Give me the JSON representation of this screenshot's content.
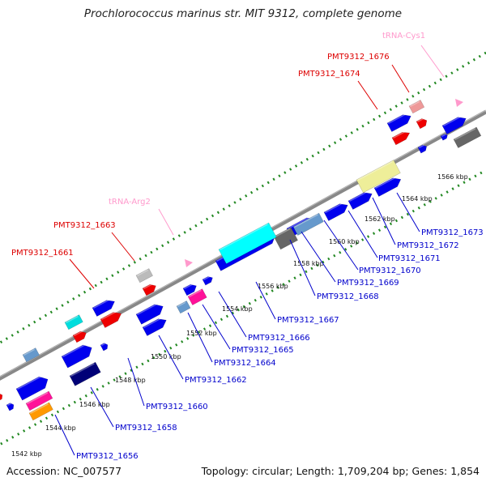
{
  "title": "Prochlorococcus marinus str. MIT 9312, complete genome",
  "accession": "Accession: NC_007577",
  "summary": "Topology: circular; Length: 1,709,204 bp; Genes: 1,854",
  "colors": {
    "label_red": "#dd0000",
    "label_blue": "#0000cc",
    "label_pink": "#ff99cc",
    "backbone": "#888888",
    "dotted_track": "#228822"
  },
  "scale_labels": [
    "1542 kbp",
    "1544 kbp",
    "1546 kbp",
    "1548 kbp",
    "1550 kbp",
    "1552 kbp",
    "1554 kbp",
    "1556 kbp",
    "1558 kbp",
    "1560 kbp",
    "1562 kbp",
    "1564 kbp",
    "1566 kbp"
  ],
  "gene_labels": [
    {
      "text": "tRNA-Cys1",
      "color": "pink"
    },
    {
      "text": "PMT9312_1676",
      "color": "red"
    },
    {
      "text": "PMT9312_1674",
      "color": "red"
    },
    {
      "text": "tRNA-Arg2",
      "color": "pink"
    },
    {
      "text": "PMT9312_1663",
      "color": "red"
    },
    {
      "text": "PMT9312_1661",
      "color": "red"
    },
    {
      "text": "PMT9312_1673",
      "color": "blue"
    },
    {
      "text": "PMT9312_1672",
      "color": "blue"
    },
    {
      "text": "PMT9312_1671",
      "color": "blue"
    },
    {
      "text": "PMT9312_1670",
      "color": "blue"
    },
    {
      "text": "PMT9312_1669",
      "color": "blue"
    },
    {
      "text": "PMT9312_1668",
      "color": "blue"
    },
    {
      "text": "PMT9312_1667",
      "color": "blue"
    },
    {
      "text": "PMT9312_1666",
      "color": "blue"
    },
    {
      "text": "PMT9312_1665",
      "color": "blue"
    },
    {
      "text": "PMT9312_1664",
      "color": "blue"
    },
    {
      "text": "PMT9312_1662",
      "color": "blue"
    },
    {
      "text": "PMT9312_1660",
      "color": "blue"
    },
    {
      "text": "PMT9312_1658",
      "color": "blue"
    },
    {
      "text": "PMT9312_1656",
      "color": "blue"
    }
  ],
  "features": [
    {
      "type": "gene",
      "color": "#0000ee",
      "strand": "forward"
    },
    {
      "type": "gene",
      "color": "#ee0000",
      "strand": "forward"
    },
    {
      "type": "tRNA",
      "color": "#ee9999",
      "strand": "forward"
    },
    {
      "type": "gene",
      "color": "#bbbbbb",
      "strand": "forward"
    },
    {
      "type": "gene",
      "color": "#00dddd",
      "strand": "forward"
    },
    {
      "type": "gene",
      "color": "#6699cc",
      "strand": "forward"
    },
    {
      "type": "gene",
      "color": "#0000ee",
      "strand": "reverse"
    },
    {
      "type": "gene",
      "color": "#666666",
      "strand": "reverse"
    },
    {
      "type": "gene",
      "color": "#eeee99",
      "strand": "reverse"
    },
    {
      "type": "gene",
      "color": "#ff1199",
      "strand": "reverse"
    },
    {
      "type": "gene",
      "color": "#000077",
      "strand": "reverse"
    },
    {
      "type": "gene",
      "color": "#ff9900",
      "strand": "reverse"
    },
    {
      "type": "gene",
      "color": "#00ffff",
      "strand": "reverse"
    }
  ]
}
